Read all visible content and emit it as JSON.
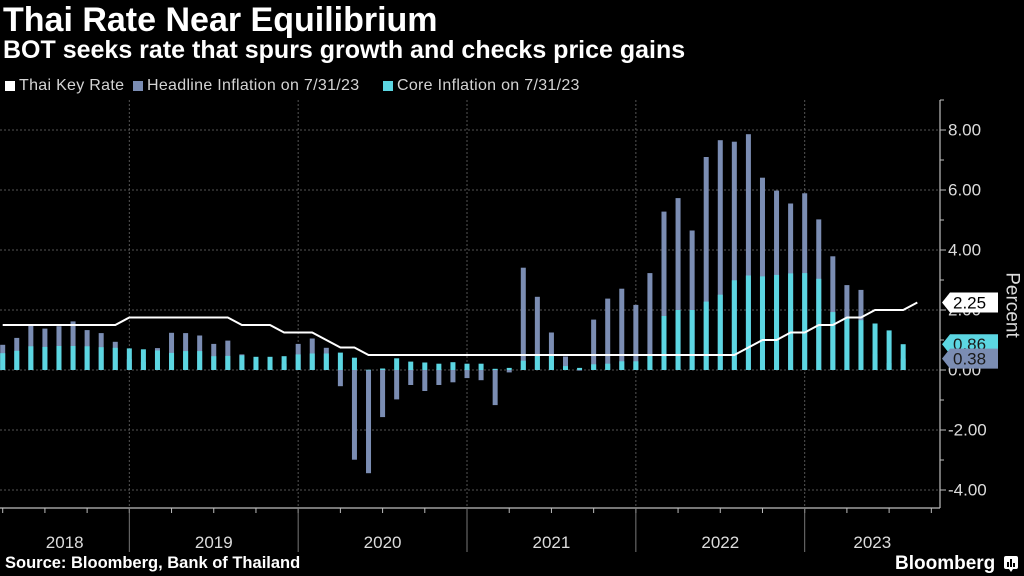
{
  "header": {
    "title": "Thai Rate Near Equilibrium",
    "subtitle": "BOT seeks rate that spurs growth and checks price gains"
  },
  "legend": [
    {
      "label": "Thai Key Rate",
      "color": "#ffffff"
    },
    {
      "label": "Headline Inflation on 7/31/23",
      "color": "#7b8db3"
    },
    {
      "label": "Core Inflation on 7/31/23",
      "color": "#5cd6e2"
    }
  ],
  "footer": {
    "source": "Source: Bloomberg, Bank of Thailand",
    "brand": "Bloomberg",
    "brand_icon": "chart-bubble-icon"
  },
  "chart_data": {
    "type": "bar",
    "title": "Thai Rate Near Equilibrium",
    "subtitle": "BOT seeks rate that spurs growth and checks price gains",
    "xlabel": "",
    "ylabel": "Percent",
    "yaxis_side": "right",
    "ylim": [
      -4.6,
      9.0
    ],
    "yticks": [
      -4,
      -2,
      0,
      2,
      4,
      6,
      8
    ],
    "ytick_labels": [
      "-4.00",
      "-2.00",
      "0.00",
      "2.00",
      "4.00",
      "6.00",
      "8.00"
    ],
    "year_labels": [
      "2018",
      "2019",
      "2020",
      "2021",
      "2022",
      "2023"
    ],
    "grid": true,
    "legend_position": "top-left",
    "categories": [
      "2018-03",
      "2018-04",
      "2018-05",
      "2018-06",
      "2018-07",
      "2018-08",
      "2018-09",
      "2018-10",
      "2018-11",
      "2018-12",
      "2019-01",
      "2019-02",
      "2019-03",
      "2019-04",
      "2019-05",
      "2019-06",
      "2019-07",
      "2019-08",
      "2019-09",
      "2019-10",
      "2019-11",
      "2019-12",
      "2020-01",
      "2020-02",
      "2020-03",
      "2020-04",
      "2020-05",
      "2020-06",
      "2020-07",
      "2020-08",
      "2020-09",
      "2020-10",
      "2020-11",
      "2020-12",
      "2021-01",
      "2021-02",
      "2021-03",
      "2021-04",
      "2021-05",
      "2021-06",
      "2021-07",
      "2021-08",
      "2021-09",
      "2021-10",
      "2021-11",
      "2021-12",
      "2022-01",
      "2022-02",
      "2022-03",
      "2022-04",
      "2022-05",
      "2022-06",
      "2022-07",
      "2022-08",
      "2022-09",
      "2022-10",
      "2022-11",
      "2022-12",
      "2023-01",
      "2023-02",
      "2023-03",
      "2023-04",
      "2023-05",
      "2023-06",
      "2023-07",
      "2023-08"
    ],
    "series": [
      {
        "id": "headline",
        "name": "Headline Inflation on 7/31/23",
        "type": "bar",
        "color": "#7b8db3",
        "values": [
          0.84,
          1.07,
          1.49,
          1.38,
          1.46,
          1.62,
          1.33,
          1.23,
          0.94,
          0.36,
          0.27,
          0.73,
          1.24,
          1.23,
          1.15,
          0.87,
          0.98,
          0.52,
          0.32,
          0.11,
          0.21,
          0.87,
          1.05,
          0.74,
          -0.54,
          -2.99,
          -3.44,
          -1.57,
          -0.98,
          -0.5,
          -0.7,
          -0.5,
          -0.41,
          -0.27,
          -0.34,
          -1.17,
          -0.08,
          3.41,
          2.44,
          1.25,
          0.45,
          -0.02,
          1.68,
          2.38,
          2.71,
          2.17,
          3.23,
          5.28,
          5.73,
          4.65,
          7.1,
          7.66,
          7.61,
          7.86,
          6.41,
          5.98,
          5.55,
          5.89,
          5.02,
          3.79,
          2.83,
          2.67,
          0.53,
          0.23,
          0.38,
          null
        ]
      },
      {
        "id": "core",
        "name": "Core Inflation on 7/31/23",
        "type": "bar",
        "color": "#5cd6e2",
        "values": [
          0.56,
          0.64,
          0.79,
          0.77,
          0.8,
          0.8,
          0.79,
          0.76,
          0.74,
          0.72,
          0.69,
          0.65,
          0.57,
          0.63,
          0.63,
          0.46,
          0.47,
          0.49,
          0.44,
          0.44,
          0.46,
          0.52,
          0.55,
          0.55,
          0.58,
          0.41,
          0.01,
          0.05,
          0.39,
          0.28,
          0.25,
          0.21,
          0.26,
          0.21,
          0.21,
          0.04,
          0.07,
          0.31,
          0.49,
          0.52,
          0.13,
          0.07,
          0.19,
          0.21,
          0.29,
          0.29,
          0.52,
          1.8,
          2.0,
          2.0,
          2.28,
          2.51,
          2.99,
          3.15,
          3.12,
          3.17,
          3.22,
          3.23,
          3.04,
          1.93,
          1.75,
          1.66,
          1.55,
          1.32,
          0.86,
          null
        ]
      },
      {
        "id": "key_rate",
        "name": "Thai Key Rate",
        "type": "line",
        "color": "#ffffff",
        "values": [
          1.5,
          1.5,
          1.5,
          1.5,
          1.5,
          1.5,
          1.5,
          1.5,
          1.5,
          1.75,
          1.75,
          1.75,
          1.75,
          1.75,
          1.75,
          1.75,
          1.75,
          1.5,
          1.5,
          1.5,
          1.25,
          1.25,
          1.25,
          1.0,
          0.75,
          0.75,
          0.5,
          0.5,
          0.5,
          0.5,
          0.5,
          0.5,
          0.5,
          0.5,
          0.5,
          0.5,
          0.5,
          0.5,
          0.5,
          0.5,
          0.5,
          0.5,
          0.5,
          0.5,
          0.5,
          0.5,
          0.5,
          0.5,
          0.5,
          0.5,
          0.5,
          0.5,
          0.5,
          0.75,
          1.0,
          1.0,
          1.25,
          1.25,
          1.5,
          1.5,
          1.75,
          1.75,
          2.0,
          2.0,
          2.0,
          2.25
        ]
      }
    ],
    "end_labels": [
      {
        "series": "Thai Key Rate",
        "label": "2.25",
        "value": 2.25,
        "bg": "#ffffff",
        "fg": "#000000"
      },
      {
        "series": "Core Inflation on 7/31/23",
        "label": "0.86",
        "value": 0.86,
        "bg": "#5cd6e2",
        "fg": "#1a1a1a"
      },
      {
        "series": "Headline Inflation on 7/31/23",
        "label": "0.38",
        "value": 0.38,
        "bg": "#7b8db3",
        "fg": "#1a1a1a"
      }
    ]
  }
}
